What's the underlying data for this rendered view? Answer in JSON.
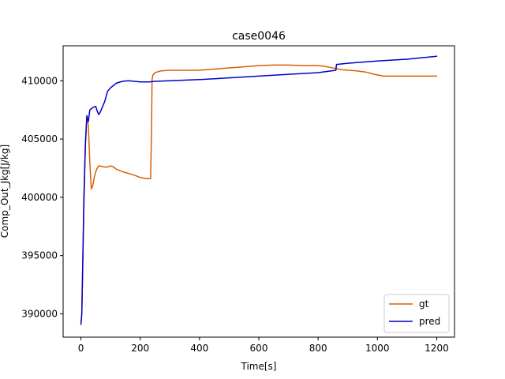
{
  "chart_data": {
    "type": "line",
    "title": "case0046",
    "xlabel": "Time[s]",
    "ylabel": "Comp_Out_Jkg[J/kg]",
    "xlim": [
      -60,
      1260
    ],
    "ylim": [
      388000,
      413000
    ],
    "xticks": [
      0,
      200,
      400,
      600,
      800,
      1000,
      1200
    ],
    "yticks": [
      390000,
      395000,
      400000,
      405000,
      410000
    ],
    "grid": false,
    "legend_position": "lower-right",
    "series": [
      {
        "name": "gt",
        "color": "#d95f02",
        "x": [
          0,
          3,
          6,
          10,
          15,
          20,
          25,
          30,
          35,
          40,
          45,
          50,
          55,
          60,
          70,
          80,
          90,
          100,
          110,
          120,
          140,
          160,
          180,
          200,
          220,
          235,
          238,
          240,
          243,
          250,
          270,
          300,
          350,
          400,
          450,
          500,
          550,
          600,
          650,
          700,
          750,
          800,
          820,
          840,
          860,
          880,
          900,
          930,
          960,
          990,
          1020,
          1100,
          1200
        ],
        "y": [
          389100,
          390000,
          394000,
          399000,
          404500,
          407000,
          406200,
          403000,
          400700,
          401000,
          401700,
          402200,
          402500,
          402700,
          402650,
          402600,
          402600,
          402700,
          402600,
          402400,
          402200,
          402050,
          401900,
          401700,
          401600,
          401600,
          405500,
          410100,
          410500,
          410700,
          410850,
          410900,
          410900,
          410900,
          411000,
          411100,
          411200,
          411300,
          411350,
          411350,
          411300,
          411300,
          411250,
          411150,
          411050,
          410950,
          410900,
          410850,
          410750,
          410550,
          410400,
          410400,
          410400
        ]
      },
      {
        "name": "pred",
        "color": "#0000cc",
        "x": [
          0,
          3,
          6,
          10,
          15,
          20,
          25,
          30,
          35,
          40,
          50,
          55,
          60,
          65,
          70,
          80,
          90,
          100,
          110,
          120,
          140,
          160,
          180,
          200,
          230,
          250,
          300,
          400,
          500,
          600,
          700,
          800,
          860,
          862,
          900,
          1000,
          1100,
          1200
        ],
        "y": [
          389100,
          390000,
          394000,
          400000,
          404500,
          407000,
          406500,
          407500,
          407600,
          407700,
          407800,
          407400,
          407100,
          407300,
          407600,
          408200,
          409100,
          409400,
          409600,
          409800,
          409950,
          410000,
          409950,
          409900,
          409900,
          409950,
          410000,
          410100,
          410250,
          410400,
          410550,
          410700,
          410900,
          411400,
          411500,
          411700,
          411850,
          412100
        ]
      }
    ]
  }
}
